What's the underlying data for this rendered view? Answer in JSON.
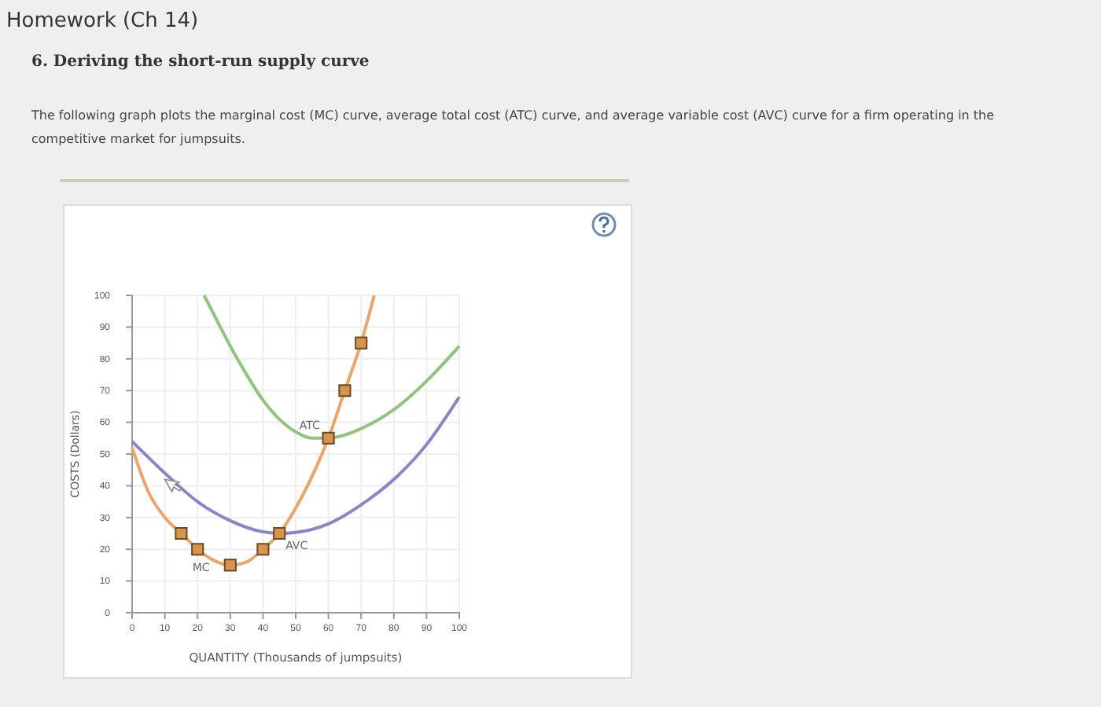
{
  "chart_data": {
    "type": "line",
    "title": "6. Deriving the short-run supply curve",
    "subtitle": "The following graph plots the marginal cost (MC) curve, average total cost (ATC) curve, and average variable cost (AVC) curve for a firm operating in the competitive market for jumpsuits.",
    "annotations": [
      "Homework (Ch 14)"
    ],
    "xlabel": "QUANTITY (Thousands of jumpsuits)",
    "ylabel": "COSTS (Dollars)",
    "xlim": [
      0,
      100
    ],
    "xticks": [
      0,
      10,
      20,
      30,
      40,
      50,
      60,
      70,
      80,
      90,
      100
    ],
    "ylim": [
      0,
      100
    ],
    "yticks": [
      0,
      10,
      20,
      30,
      40,
      50,
      60,
      70,
      80,
      90,
      100
    ],
    "grid": true,
    "line_style": "solid",
    "series": [
      {
        "name": "MC",
        "color": "#eba46a",
        "x": [
          0,
          5,
          10,
          15,
          20,
          25,
          30,
          35,
          40,
          45,
          50,
          55,
          60,
          65,
          70,
          74
        ],
        "values": [
          52,
          38,
          30,
          25,
          20,
          16.5,
          15,
          16,
          20,
          25,
          33,
          43,
          55,
          70,
          85,
          100
        ]
      },
      {
        "name": "ATC",
        "color": "#8fc47a",
        "x": [
          22,
          25,
          30,
          35,
          40,
          45,
          50,
          55,
          60,
          65,
          70,
          80,
          90,
          100
        ],
        "values": [
          100,
          94,
          84,
          75,
          67,
          61,
          57,
          55,
          55,
          56,
          58,
          64,
          73,
          84
        ]
      },
      {
        "name": "AVC",
        "color": "#8f82cc",
        "x": [
          0,
          10,
          20,
          30,
          40,
          45,
          50,
          60,
          70,
          80,
          90,
          100
        ],
        "values": [
          54,
          44,
          35,
          29,
          25.5,
          25,
          25.3,
          28,
          34,
          42,
          53,
          68
        ]
      },
      {
        "type": "scatter",
        "marker": "square",
        "color": "#d9944c",
        "x": [
          15,
          20,
          30,
          40,
          45,
          60,
          65,
          70
        ],
        "values": [
          25,
          20,
          15,
          20,
          25,
          55,
          70,
          85
        ]
      }
    ]
  }
}
